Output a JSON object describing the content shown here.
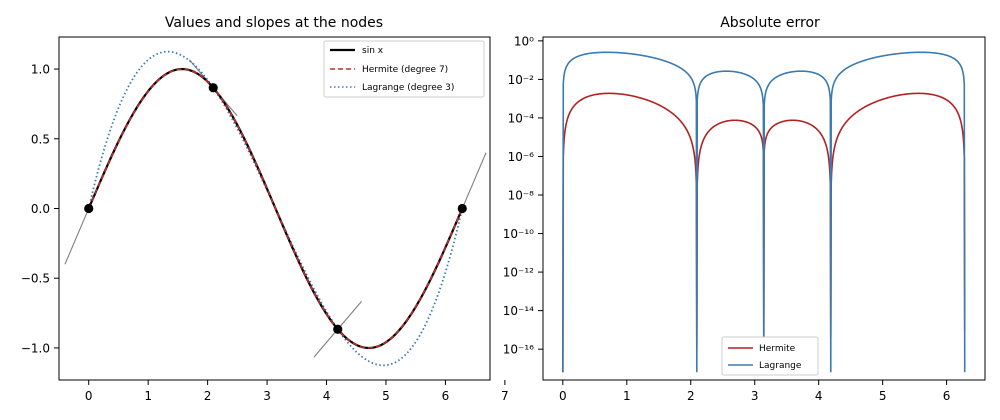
{
  "chart_data": [
    {
      "type": "line",
      "title": "Values and slopes at the nodes",
      "xlabel": "",
      "ylabel": "",
      "xlim": [
        -0.5,
        6.75
      ],
      "ylim": [
        -1.23,
        1.23
      ],
      "xticks": [
        0,
        1,
        2,
        3,
        4,
        5,
        6,
        7
      ],
      "yticks": [
        -1.0,
        -0.5,
        0.0,
        0.5,
        1.0
      ],
      "ytick_labels": [
        "−1.0",
        "−0.5",
        "0.0",
        "0.5",
        "1.0"
      ],
      "grid": false,
      "legend_position": "top-right",
      "series": [
        {
          "name": "sin x",
          "function": "sin",
          "color": "#000000",
          "style": "solid"
        },
        {
          "name": "Hermite (degree 7)",
          "function": "hermite",
          "color": "#c62828",
          "style": "dashed"
        },
        {
          "name": "Lagrange (degree 3)",
          "function": "lagrange",
          "color": "#3a7bb0",
          "style": "dotted"
        }
      ],
      "nodes": {
        "x": [
          0,
          2.0944,
          4.1888,
          6.2832
        ],
        "y": [
          0,
          0.866,
          -0.866,
          0
        ]
      },
      "tangent_segments": [
        {
          "x": [
            -0.4,
            0.4
          ],
          "y": [
            -0.4,
            0.4
          ]
        },
        {
          "x": [
            1.6944,
            2.4944
          ],
          "y": [
            1.066,
            0.666
          ]
        },
        {
          "x": [
            3.7888,
            4.5888
          ],
          "y": [
            -1.066,
            -0.666
          ]
        },
        {
          "x": [
            5.8832,
            6.6832
          ],
          "y": [
            -0.4,
            0.4
          ]
        }
      ],
      "tangent_color": "#808080",
      "node_color": "#000000"
    },
    {
      "type": "line",
      "title": "Absolute error",
      "xlabel": "",
      "ylabel": "",
      "xlim": [
        -0.31,
        6.6
      ],
      "yscale": "log",
      "ylim_exp": [
        -17.6,
        0.2
      ],
      "xticks": [
        0,
        1,
        2,
        3,
        4,
        5,
        6
      ],
      "ytick_exponents": [
        0,
        -2,
        -4,
        -6,
        -8,
        -10,
        -12,
        -14,
        -16
      ],
      "ytick_labels": [
        "10⁰",
        "10⁻²",
        "10⁻⁴",
        "10⁻⁶",
        "10⁻⁸",
        "10⁻¹⁰",
        "10⁻¹²",
        "10⁻¹⁴",
        "10⁻¹⁶"
      ],
      "grid": false,
      "legend_position": "lower-center",
      "series": [
        {
          "name": "Hermite",
          "function": "hermite_error",
          "color": "#b22222",
          "style": "solid"
        },
        {
          "name": "Lagrange",
          "function": "lagrange_error",
          "color": "#3a7bb0",
          "style": "solid"
        }
      ]
    }
  ]
}
